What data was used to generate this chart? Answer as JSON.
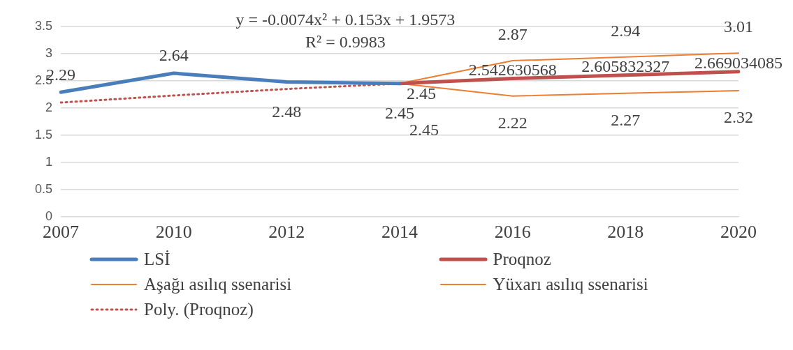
{
  "chart_data": {
    "type": "line",
    "categories": [
      "2007",
      "2010",
      "2012",
      "2014",
      "2016",
      "2018",
      "2020"
    ],
    "series": [
      {
        "name": "LSİ",
        "color": "#4a7ebb",
        "values": [
          2.29,
          2.64,
          2.48,
          2.45,
          null,
          null,
          null
        ],
        "value_labels": [
          "2.29",
          "2.64",
          "2.48",
          "2.45",
          null,
          null,
          null
        ]
      },
      {
        "name": "Proqnoz",
        "color": "#c0504d",
        "values": [
          null,
          null,
          null,
          2.45,
          2.542630568,
          2.605832327,
          2.669034085
        ],
        "value_labels": [
          null,
          null,
          null,
          "2.45",
          "2.542630568",
          "2.605832327",
          "2.669034085"
        ]
      },
      {
        "name": "Aşağı asılıq ssenarisi",
        "color": "#ed7d31",
        "values": [
          null,
          null,
          null,
          2.45,
          2.22,
          2.27,
          2.32
        ],
        "value_labels": [
          null,
          null,
          null,
          "2.45",
          "2.22",
          "2.27",
          "2.32"
        ]
      },
      {
        "name": "Yüxarı asılıq ssenarisi",
        "color": "#ed7d31",
        "values": [
          null,
          null,
          null,
          2.45,
          2.87,
          2.94,
          3.01
        ],
        "value_labels": [
          null,
          null,
          null,
          null,
          "2.87",
          "2.94",
          "3.01"
        ]
      },
      {
        "name": "Poly. (Proqnoz)",
        "color": "#c0504d",
        "line_style": "dotted",
        "values": [
          2.1,
          2.23,
          2.35,
          2.45,
          null,
          null,
          null
        ]
      }
    ],
    "annotations": [
      "y = -0.0074x² + 0.153x + 1.9573",
      "R² = 0.9983"
    ],
    "ylim": [
      0,
      3.5
    ],
    "yticks": [
      0,
      0.5,
      1,
      1.5,
      2,
      2.5,
      3,
      3.5
    ],
    "grid": "y",
    "legend": "bottom",
    "marker": "none"
  }
}
